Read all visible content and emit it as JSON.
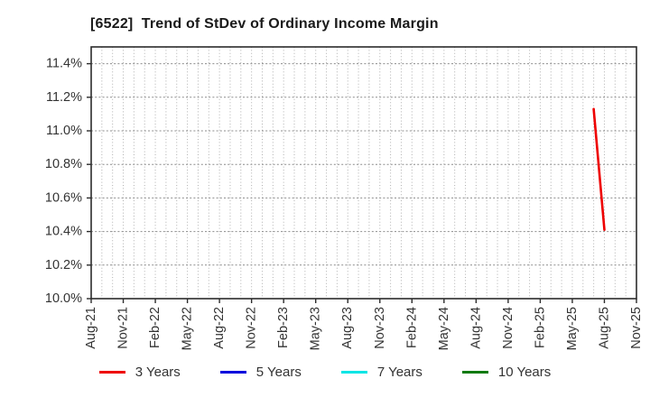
{
  "header": {
    "title": "[6522]  Trend of StDev of Ordinary Income Margin"
  },
  "chart_data": {
    "type": "line",
    "title": "[6522]  Trend of StDev of Ordinary Income Margin",
    "xlabel": "",
    "ylabel": "",
    "ylim": [
      10.0,
      11.5
    ],
    "ytick_labels": [
      "10.0%",
      "10.2%",
      "10.4%",
      "10.6%",
      "10.8%",
      "11.0%",
      "11.2%",
      "11.4%"
    ],
    "ytick_values": [
      10.0,
      10.2,
      10.4,
      10.6,
      10.8,
      11.0,
      11.2,
      11.4
    ],
    "xtick_labels": [
      "Aug-21",
      "Nov-21",
      "Feb-22",
      "May-22",
      "Aug-22",
      "Nov-22",
      "Feb-23",
      "May-23",
      "Aug-23",
      "Nov-23",
      "Feb-24",
      "May-24",
      "Aug-24",
      "Nov-24",
      "Feb-25",
      "May-25",
      "Aug-25",
      "Nov-25"
    ],
    "x_start_month": "Aug-21",
    "x_end_month": "Nov-25",
    "months_total": 51,
    "grid": true,
    "legend_position": "bottom",
    "series": [
      {
        "name": "3 Years",
        "color": "#ee0000",
        "points": [
          {
            "x": "Jul-25",
            "y": 11.13
          },
          {
            "x": "Aug-25",
            "y": 10.41
          }
        ]
      },
      {
        "name": "5 Years",
        "color": "#0000dd",
        "points": []
      },
      {
        "name": "7 Years",
        "color": "#00e5e5",
        "points": []
      },
      {
        "name": "10 Years",
        "color": "#0f7a0f",
        "points": []
      }
    ],
    "colors": {
      "axis": "#2b2b2b",
      "grid_major_h": "#8c8c8c",
      "grid_minor_v": "#b0b0b0",
      "tick_text": "#333333"
    }
  }
}
